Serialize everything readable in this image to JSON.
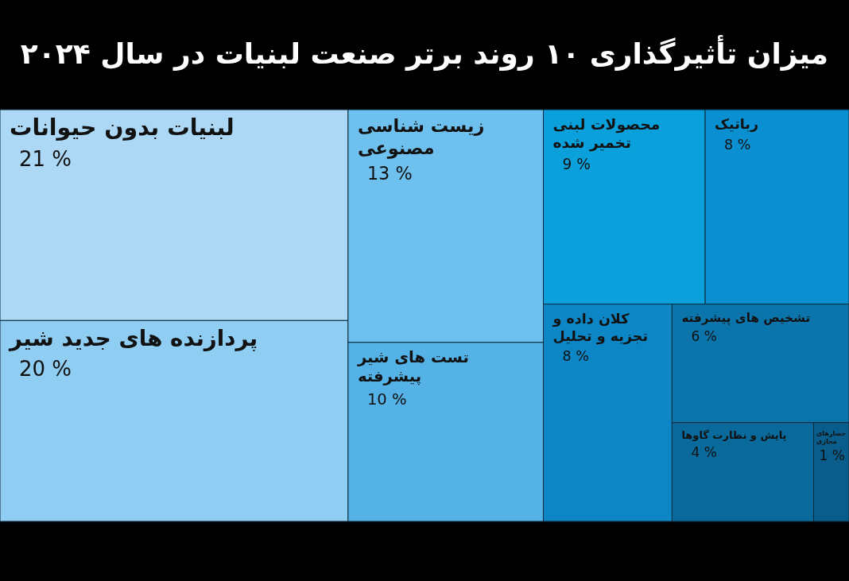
{
  "chart_data": {
    "type": "other",
    "title": "میزان تأثیرگذاری ۱۰ روند برتر صنعت لبنیات در سال ۲۰۲۴",
    "categories": [
      "لبنیات بدون حیوانات",
      "پردازنده های جدید شیر",
      "زیست شناسی مصنوعی",
      "تست های شیر پیشرفته",
      "محصولات لبنی تخمیر شده",
      "رباتیک",
      "کلان داده و تجزیه و تحلیل",
      "تشخیص های پیشرفته",
      "پایش و نظارت گاوها",
      "حصارهای مجازی"
    ],
    "values": [
      21,
      20,
      13,
      10,
      9,
      8,
      8,
      6,
      4,
      1
    ],
    "value_labels": [
      "21 %",
      "20 %",
      "13 %",
      "10 %",
      "9 %",
      "8 %",
      "8 %",
      "6 %",
      "4 %",
      "1 %"
    ],
    "colors": [
      "#acd8f5",
      "#8fcdf2",
      "#6ec1ee",
      "#54b2e6",
      "#0aa0dc",
      "#0a8fd0",
      "#0c86c4",
      "#0b75ab",
      "#0a6a9c",
      "#0a5d8a"
    ]
  }
}
